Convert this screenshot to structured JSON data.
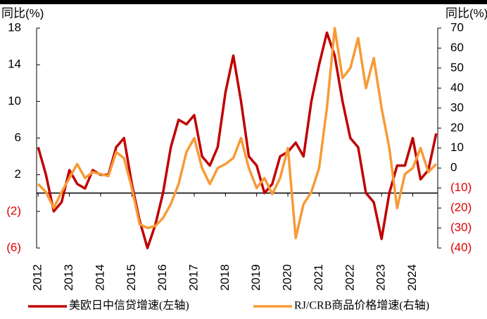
{
  "chart_data": {
    "type": "line",
    "y_label": "同比(%)",
    "y2_label": "同比(%)",
    "x": [
      2012,
      2012.25,
      2012.5,
      2012.75,
      2013,
      2013.25,
      2013.5,
      2013.75,
      2014,
      2014.25,
      2014.5,
      2014.75,
      2015,
      2015.25,
      2015.5,
      2015.75,
      2016,
      2016.25,
      2016.5,
      2016.75,
      2017,
      2017.25,
      2017.5,
      2017.75,
      2018,
      2018.25,
      2018.5,
      2018.75,
      2019,
      2019.25,
      2019.5,
      2019.75,
      2020,
      2020.25,
      2020.5,
      2020.75,
      2021,
      2021.25,
      2021.5,
      2021.75,
      2022,
      2022.25,
      2022.5,
      2022.75,
      2023,
      2023.25,
      2023.5,
      2023.75,
      2024,
      2024.25,
      2024.5,
      2024.75
    ],
    "xlim": [
      2011.95,
      2024.8
    ],
    "xticks": [
      2012,
      2013,
      2014,
      2015,
      2016,
      2017,
      2018,
      2019,
      2020,
      2021,
      2022,
      2023,
      2024
    ],
    "ylim": [
      -6,
      18
    ],
    "yticks": [
      18,
      14,
      10,
      6,
      2,
      {
        "value": -2,
        "label": "(2)"
      },
      {
        "value": -6,
        "label": "(6)"
      }
    ],
    "y2lim": [
      -40,
      70
    ],
    "y2ticks": [
      70,
      60,
      50,
      40,
      30,
      20,
      10,
      0,
      {
        "value": -10,
        "label": "(10)"
      },
      {
        "value": -20,
        "label": "(20)"
      },
      {
        "value": -30,
        "label": "(30)"
      },
      {
        "value": -40,
        "label": "(40)"
      }
    ],
    "negative_tick_color": "#e00000",
    "series": [
      {
        "name": "美欧日中信贷增速(左轴)",
        "color": "#c00000",
        "values": [
          5,
          2,
          -2,
          -1,
          2.5,
          1,
          0.5,
          2.5,
          2,
          2,
          5,
          6,
          1,
          -3,
          -6,
          -3.5,
          0,
          5,
          8,
          7.5,
          8.5,
          4,
          3,
          5,
          11,
          15,
          10,
          4,
          3,
          0,
          1,
          4,
          4.5,
          5.5,
          4,
          10,
          14,
          17.5,
          15,
          10,
          6,
          5,
          0,
          -1,
          -5,
          0,
          3,
          3,
          6,
          1.5,
          2.5,
          6.5
        ]
      },
      {
        "name": "RJ/CRB商品价格增速(右轴)",
        "color": "#f79a36",
        "axis": "y2",
        "values": [
          -8,
          -12,
          -20,
          -12,
          -5,
          2,
          -5,
          -2,
          -3,
          -4,
          8,
          5,
          -10,
          -28,
          -30,
          -29,
          -25,
          -18,
          -8,
          8,
          15,
          0,
          -8,
          0,
          2,
          5,
          15,
          0,
          -10,
          -5,
          -13,
          -5,
          10,
          -35,
          -18,
          -12,
          0,
          30,
          70,
          45,
          50,
          65,
          40,
          55,
          30,
          10,
          -20,
          -3,
          0,
          10,
          -2,
          2
        ]
      }
    ]
  }
}
